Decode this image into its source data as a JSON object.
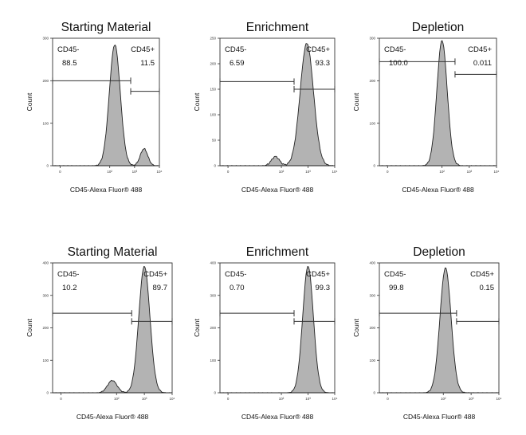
{
  "chart_data": [
    {
      "type": "area",
      "title": "Starting Material",
      "xlabel": "CD45-Alexa Fluor® 488",
      "ylabel": "Count",
      "xscale": "log",
      "xlim": [
        0.5,
        10000
      ],
      "ylim": [
        0,
        300
      ],
      "yticks": [
        0,
        100,
        200,
        300
      ],
      "yticklabels": [
        "0",
        "100",
        "200",
        "300"
      ],
      "xticklabels": [
        "0",
        "10²",
        "10³",
        "10⁴"
      ],
      "peaks": [
        {
          "center": 160,
          "height": 285,
          "width": 0.22
        },
        {
          "center": 2400,
          "height": 40,
          "width": 0.15
        }
      ],
      "gates": [
        {
          "name": "CD45-",
          "percent": "88.5",
          "range": [
            0.5,
            700
          ],
          "y": 200
        },
        {
          "name": "CD45+",
          "percent": "11.5",
          "range": [
            700,
            10000
          ],
          "y": 175
        }
      ]
    },
    {
      "type": "area",
      "title": "Enrichment",
      "xlabel": "CD45-Alexa Fluor® 488",
      "ylabel": "Count",
      "xscale": "log",
      "xlim": [
        0.5,
        10000
      ],
      "ylim": [
        0,
        250
      ],
      "yticks": [
        0,
        50,
        100,
        150,
        200,
        250
      ],
      "yticklabels": [
        "0",
        "50",
        "100",
        "150",
        "200",
        "250"
      ],
      "xticklabels": [
        "0",
        "10²",
        "10³",
        "10⁴"
      ],
      "peaks": [
        {
          "center": 900,
          "height": 240,
          "width": 0.25
        },
        {
          "center": 60,
          "height": 18,
          "width": 0.15
        }
      ],
      "gates": [
        {
          "name": "CD45-",
          "percent": "6.59",
          "range": [
            0.5,
            300
          ],
          "y": 165
        },
        {
          "name": "CD45+",
          "percent": "93.3",
          "range": [
            300,
            10000
          ],
          "y": 150
        }
      ]
    },
    {
      "type": "area",
      "title": "Depletion",
      "xlabel": "CD45-Alexa Fluor® 488",
      "ylabel": "Count",
      "xscale": "log",
      "xlim": [
        0.5,
        10000
      ],
      "ylim": [
        0,
        300
      ],
      "yticks": [
        0,
        100,
        200,
        300
      ],
      "yticklabels": [
        "0",
        "100",
        "200",
        "300"
      ],
      "xticklabels": [
        "0",
        "10²",
        "10³",
        "10⁴"
      ],
      "peaks": [
        {
          "center": 100,
          "height": 295,
          "width": 0.19
        }
      ],
      "gates": [
        {
          "name": "CD45-",
          "percent": "100.0",
          "range": [
            0.5,
            300
          ],
          "y": 245
        },
        {
          "name": "CD45+",
          "percent": "0.011",
          "range": [
            300,
            10000
          ],
          "y": 215
        }
      ]
    },
    {
      "type": "area",
      "title": "Starting Material",
      "xlabel": "CD45-Alexa Fluor® 488",
      "ylabel": "Count",
      "xscale": "log",
      "xlim": [
        0.5,
        10000
      ],
      "ylim": [
        0,
        400
      ],
      "yticks": [
        0,
        100,
        200,
        300,
        400
      ],
      "yticklabels": [
        "0",
        "100",
        "200",
        "300",
        "400"
      ],
      "xticklabels": [
        "0",
        "10²",
        "10³",
        "10⁴"
      ],
      "peaks": [
        {
          "center": 1000,
          "height": 390,
          "width": 0.2
        },
        {
          "center": 70,
          "height": 38,
          "width": 0.17
        }
      ],
      "gates": [
        {
          "name": "CD45-",
          "percent": "10.2",
          "range": [
            0.5,
            350
          ],
          "y": 245
        },
        {
          "name": "CD45+",
          "percent": "89.7",
          "range": [
            350,
            10000
          ],
          "y": 220
        }
      ]
    },
    {
      "type": "area",
      "title": "Enrichment",
      "xlabel": "CD45-Alexa Fluor® 488",
      "ylabel": "Count",
      "xscale": "log",
      "xlim": [
        0.5,
        10000
      ],
      "ylim": [
        0,
        400
      ],
      "yticks": [
        0,
        100,
        200,
        300,
        400
      ],
      "yticklabels": [
        "0",
        "100",
        "200",
        "300",
        "400"
      ],
      "xticklabels": [
        "0",
        "10²",
        "10³",
        "10⁴"
      ],
      "peaks": [
        {
          "center": 1000,
          "height": 390,
          "width": 0.2
        }
      ],
      "gates": [
        {
          "name": "CD45-",
          "percent": "0.70",
          "range": [
            0.5,
            300
          ],
          "y": 245
        },
        {
          "name": "CD45+",
          "percent": "99.3",
          "range": [
            300,
            10000
          ],
          "y": 220
        }
      ]
    },
    {
      "type": "area",
      "title": "Depletion",
      "xlabel": "CD45-Alexa Fluor® 488",
      "ylabel": "Count",
      "xscale": "log",
      "xlim": [
        0.5,
        10000
      ],
      "ylim": [
        0,
        400
      ],
      "yticks": [
        0,
        100,
        200,
        300,
        400
      ],
      "yticklabels": [
        "0",
        "100",
        "200",
        "300",
        "400"
      ],
      "xticklabels": [
        "0",
        "10²",
        "10³",
        "10⁴"
      ],
      "peaks": [
        {
          "center": 120,
          "height": 385,
          "width": 0.2
        }
      ],
      "gates": [
        {
          "name": "CD45-",
          "percent": "99.8",
          "range": [
            0.5,
            300
          ],
          "y": 245
        },
        {
          "name": "CD45+",
          "percent": "0.15",
          "range": [
            300,
            10000
          ],
          "y": 220
        }
      ]
    }
  ]
}
